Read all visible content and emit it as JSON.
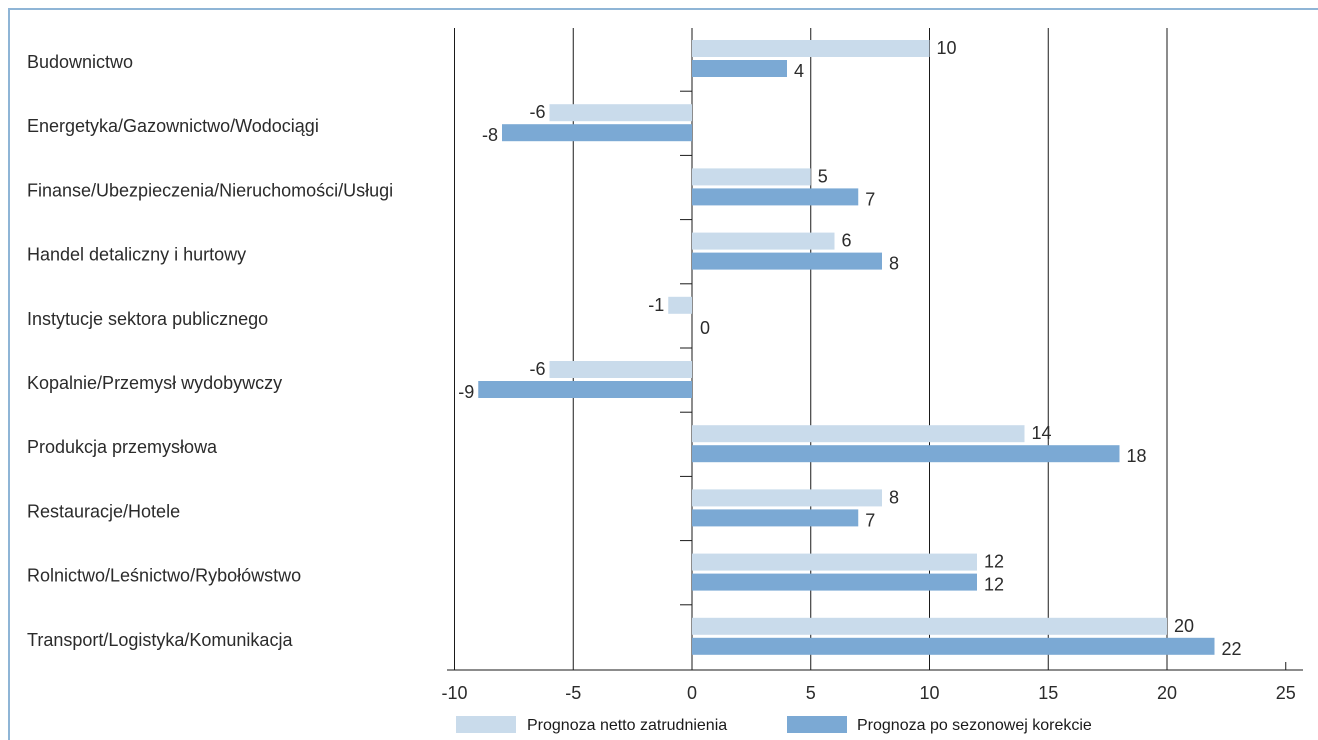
{
  "chart_data": {
    "type": "bar",
    "orientation": "horizontal",
    "categories": [
      "Budownictwo",
      "Energetyka/Gazownictwo/Wodociągi",
      "Finanse/Ubezpieczenia/Nieruchomości/Usługi",
      "Handel detaliczny i hurtowy",
      "Instytucje sektora publicznego",
      "Kopalnie/Przemysł wydobywczy",
      "Produkcja przemysłowa",
      "Restauracje/Hotele",
      "Rolnictwo/Leśnictwo/Rybołówstwo",
      "Transport/Logistyka/Komunikacja"
    ],
    "series": [
      {
        "name": "Prognoza netto zatrudnienia",
        "color": "#c9dbeb",
        "values": [
          10,
          -6,
          5,
          6,
          -1,
          -6,
          14,
          8,
          12,
          20
        ]
      },
      {
        "name": "Prognoza po sezonowej korekcie",
        "color": "#7ba9d4",
        "values": [
          4,
          -8,
          7,
          8,
          0,
          -9,
          18,
          7,
          12,
          22
        ]
      }
    ],
    "xlim": [
      -10,
      25
    ],
    "xticks": [
      -10,
      -5,
      0,
      5,
      10,
      15,
      20,
      25
    ],
    "grid": true,
    "legend_position": "bottom",
    "title": "",
    "xlabel": "",
    "ylabel": ""
  }
}
